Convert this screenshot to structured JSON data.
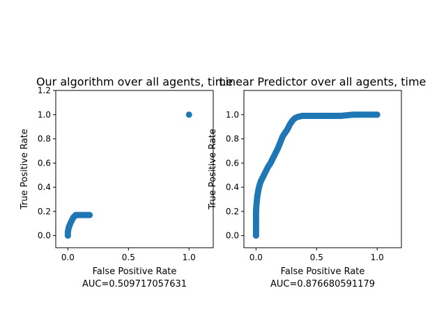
{
  "marker_color": "#1f77b4",
  "chart_data": [
    {
      "type": "scatter",
      "title": "Our algorithm over all agents, time",
      "xlabel": "False Positive Rate",
      "xlabel2": "AUC=0.509717057631",
      "ylabel": "True Positive Rate",
      "xlim": [
        -0.1,
        1.2
      ],
      "ylim": [
        -0.1,
        1.2
      ],
      "xticks": [
        0.0,
        0.5,
        1.0
      ],
      "xtick_labels": [
        "0.0",
        "0.5",
        "1.0"
      ],
      "yticks": [
        0.0,
        0.2,
        0.4,
        0.6,
        0.8,
        1.0,
        1.2
      ],
      "ytick_labels": [
        "0.0",
        "0.2",
        "0.4",
        "0.6",
        "0.8",
        "1.0",
        "1.2"
      ],
      "grid": false,
      "x": [
        0.0,
        0.0,
        0.0,
        0.002,
        0.004,
        0.006,
        0.008,
        0.01,
        0.013,
        0.016,
        0.02,
        0.025,
        0.03,
        0.035,
        0.04,
        0.045,
        0.05,
        0.055,
        0.06,
        0.065,
        0.07,
        0.075,
        0.08,
        0.09,
        0.1,
        0.11,
        0.12,
        0.13,
        0.14,
        0.15,
        0.16,
        0.17,
        0.18,
        1.0
      ],
      "y": [
        0.0,
        0.01,
        0.03,
        0.04,
        0.05,
        0.06,
        0.07,
        0.075,
        0.08,
        0.09,
        0.1,
        0.11,
        0.12,
        0.13,
        0.14,
        0.15,
        0.155,
        0.16,
        0.165,
        0.17,
        0.17,
        0.17,
        0.17,
        0.17,
        0.17,
        0.17,
        0.17,
        0.17,
        0.17,
        0.17,
        0.17,
        0.17,
        0.17,
        1.0
      ]
    },
    {
      "type": "scatter",
      "title": "Linear Predictor over all agents, time",
      "xlabel": "False Positive Rate",
      "xlabel2": "AUC=0.876680591179",
      "ylabel": "True Positive Rate",
      "xlim": [
        -0.1,
        1.2
      ],
      "ylim": [
        -0.1,
        1.2
      ],
      "xticks": [
        0.0,
        0.5,
        1.0
      ],
      "xtick_labels": [
        "0.0",
        "0.5",
        "1.0"
      ],
      "yticks": [
        0.0,
        0.2,
        0.4,
        0.6,
        0.8,
        1.0
      ],
      "ytick_labels": [
        "0.0",
        "0.2",
        "0.4",
        "0.6",
        "0.8",
        "1.0"
      ],
      "grid": false,
      "x": [
        0.0,
        0.0,
        0.0,
        0.0,
        0.0,
        0.002,
        0.004,
        0.007,
        0.01,
        0.015,
        0.02,
        0.03,
        0.04,
        0.05,
        0.06,
        0.07,
        0.08,
        0.09,
        0.1,
        0.12,
        0.14,
        0.16,
        0.18,
        0.2,
        0.22,
        0.24,
        0.26,
        0.28,
        0.3,
        0.32,
        0.34,
        0.36,
        0.38,
        0.4,
        0.45,
        0.5,
        0.55,
        0.6,
        0.65,
        0.7,
        0.75,
        0.8,
        0.85,
        0.9,
        0.95,
        1.0
      ],
      "y": [
        0.0,
        0.05,
        0.1,
        0.15,
        0.2,
        0.23,
        0.26,
        0.29,
        0.32,
        0.35,
        0.38,
        0.42,
        0.45,
        0.47,
        0.49,
        0.51,
        0.53,
        0.55,
        0.57,
        0.6,
        0.64,
        0.68,
        0.72,
        0.77,
        0.82,
        0.85,
        0.88,
        0.92,
        0.95,
        0.97,
        0.98,
        0.985,
        0.99,
        0.99,
        0.99,
        0.99,
        0.99,
        0.99,
        0.99,
        0.99,
        0.995,
        1.0,
        1.0,
        1.0,
        1.0,
        1.0
      ]
    }
  ]
}
